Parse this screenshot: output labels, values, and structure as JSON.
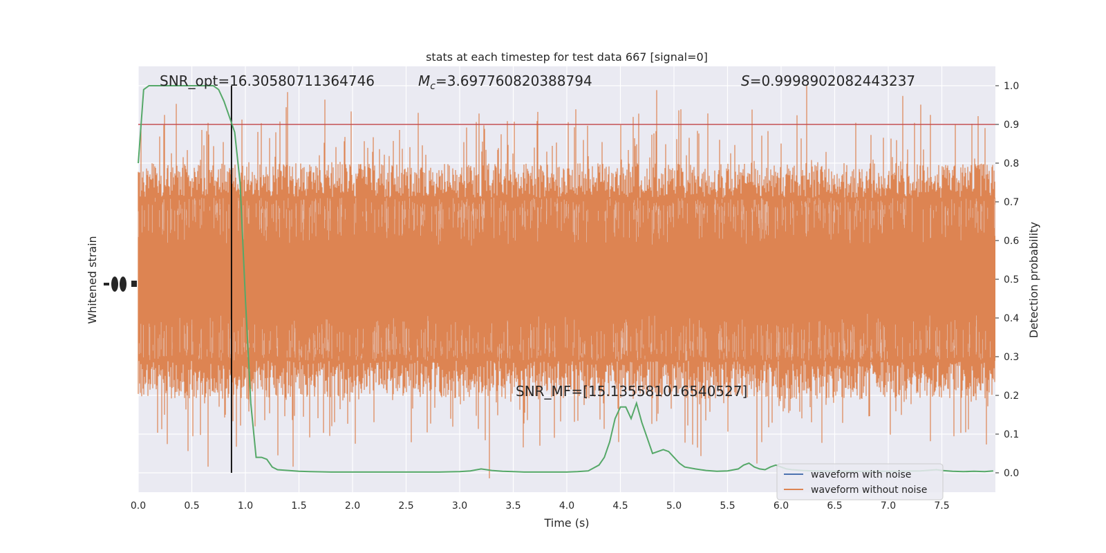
{
  "chart_data": {
    "type": "line",
    "title": "stats at each timestep for test data 667 [signal=0]",
    "xlabel": "Time (s)",
    "ylabel_left": "Whitened strain",
    "ylabel_right": "Detection probability",
    "xlim": [
      0.0,
      8.0
    ],
    "ylim_right": [
      -0.05,
      1.05
    ],
    "x_ticks": [
      "0.0",
      "0.5",
      "1.0",
      "1.5",
      "2.0",
      "2.5",
      "3.0",
      "3.5",
      "4.0",
      "4.5",
      "5.0",
      "5.5",
      "6.0",
      "6.5",
      "7.0",
      "7.5"
    ],
    "y_ticks_right": [
      "0.0",
      "0.1",
      "0.2",
      "0.3",
      "0.4",
      "0.5",
      "0.6",
      "0.7",
      "0.8",
      "0.9",
      "1.0"
    ],
    "grid": true,
    "legend_placement": "lower-right",
    "series": [
      {
        "name": "waveform with noise",
        "color": "#4c72b0"
      },
      {
        "name": "waveform without noise",
        "color": "#dd8452"
      }
    ],
    "detection_probability": {
      "color": "#55a868",
      "x": [
        0.0,
        0.05,
        0.1,
        0.15,
        0.2,
        0.3,
        0.4,
        0.5,
        0.6,
        0.7,
        0.75,
        0.8,
        0.85,
        0.9,
        0.95,
        1.0,
        1.05,
        1.1,
        1.15,
        1.2,
        1.25,
        1.3,
        1.4,
        1.5,
        1.6,
        1.8,
        2.0,
        2.2,
        2.4,
        2.6,
        2.8,
        3.0,
        3.1,
        3.2,
        3.25,
        3.3,
        3.4,
        3.5,
        3.6,
        3.8,
        4.0,
        4.1,
        4.2,
        4.3,
        4.35,
        4.4,
        4.45,
        4.5,
        4.55,
        4.6,
        4.65,
        4.7,
        4.75,
        4.8,
        4.85,
        4.9,
        4.95,
        5.0,
        5.05,
        5.1,
        5.2,
        5.3,
        5.4,
        5.5,
        5.6,
        5.65,
        5.7,
        5.75,
        5.8,
        5.85,
        5.9,
        5.95,
        6.0,
        6.05,
        6.1,
        6.2,
        6.3,
        6.5,
        6.7,
        6.9,
        7.1,
        7.3,
        7.45,
        7.5,
        7.6,
        7.7,
        7.8,
        7.9,
        7.98
      ],
      "values": [
        0.8,
        0.99,
        1.0,
        1.0,
        1.0,
        1.0,
        1.0,
        1.0,
        1.0,
        1.0,
        0.99,
        0.96,
        0.92,
        0.88,
        0.75,
        0.45,
        0.18,
        0.04,
        0.04,
        0.035,
        0.015,
        0.008,
        0.006,
        0.004,
        0.003,
        0.002,
        0.002,
        0.002,
        0.002,
        0.002,
        0.002,
        0.003,
        0.005,
        0.01,
        0.008,
        0.006,
        0.004,
        0.003,
        0.002,
        0.002,
        0.002,
        0.003,
        0.005,
        0.02,
        0.04,
        0.08,
        0.14,
        0.17,
        0.17,
        0.14,
        0.18,
        0.13,
        0.09,
        0.05,
        0.055,
        0.06,
        0.055,
        0.04,
        0.025,
        0.015,
        0.01,
        0.006,
        0.004,
        0.005,
        0.01,
        0.02,
        0.025,
        0.015,
        0.01,
        0.008,
        0.015,
        0.02,
        0.015,
        0.01,
        0.008,
        0.006,
        0.005,
        0.004,
        0.004,
        0.004,
        0.004,
        0.005,
        0.008,
        0.006,
        0.004,
        0.003,
        0.004,
        0.003,
        0.005
      ]
    },
    "threshold": {
      "value": 0.9,
      "color": "#c44e52"
    },
    "marker_time": 0.87,
    "annotations": {
      "snr_opt": "SNR_opt=16.30580711364746",
      "mc_symbol": "M",
      "mc_sub": "c",
      "mc_value": "=3.697760820388794",
      "s_symbol": "S",
      "s_value": "=0.9998902082443237",
      "snr_mf": "SNR_MF=[15.135581016540527]"
    }
  }
}
